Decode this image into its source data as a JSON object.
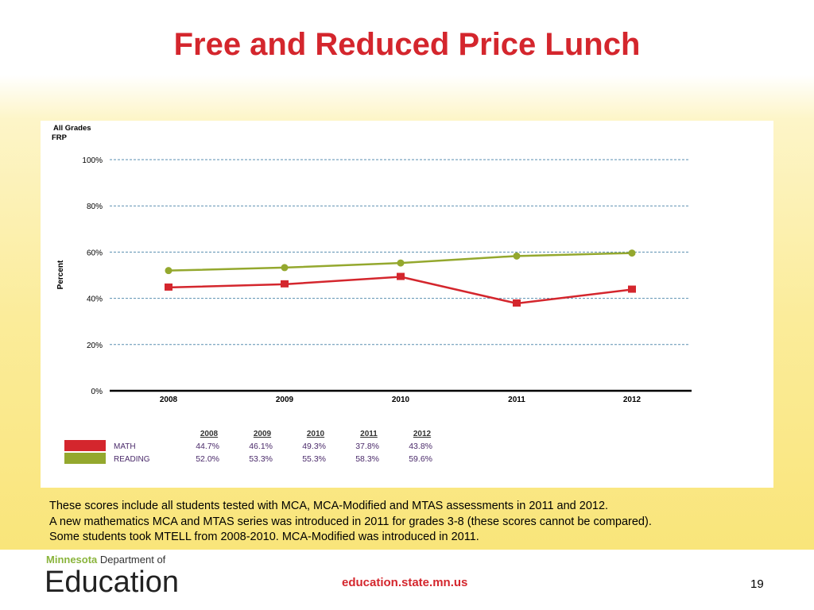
{
  "title": "Free and Reduced Price Lunch",
  "chart_data": {
    "type": "line",
    "title": "All Grades",
    "subtitle": "FRP",
    "ylabel": "Percent",
    "ylim": [
      0,
      100
    ],
    "yticks": [
      "0%",
      "20%",
      "40%",
      "60%",
      "80%",
      "100%"
    ],
    "categories": [
      "2008",
      "2009",
      "2010",
      "2011",
      "2012"
    ],
    "grid": true,
    "series": [
      {
        "name": "MATH",
        "color": "#d4262d",
        "marker": "square",
        "values": [
          44.7,
          46.1,
          49.3,
          37.8,
          43.8
        ],
        "labels": [
          "44.7%",
          "46.1%",
          "49.3%",
          "37.8%",
          "43.8%"
        ]
      },
      {
        "name": "READING",
        "color": "#94a82e",
        "marker": "circle",
        "values": [
          52.0,
          53.3,
          55.3,
          58.3,
          59.6
        ],
        "labels": [
          "52.0%",
          "53.3%",
          "55.3%",
          "58.3%",
          "59.6%"
        ]
      }
    ]
  },
  "notes": [
    "These scores include all students tested with MCA, MCA-Modified and MTAS assessments in 2011 and 2012.",
    "A new mathematics MCA and MTAS series was introduced in 2011 for grades 3-8 (these scores cannot be compared).",
    "Some students took MTELL from 2008-2010.  MCA-Modified was introduced in 2011."
  ],
  "footer": {
    "logo_top_bold": "Minnesota",
    "logo_top": " Department of",
    "logo_main": "Education",
    "url": "education.state.mn.us",
    "page": "19"
  }
}
